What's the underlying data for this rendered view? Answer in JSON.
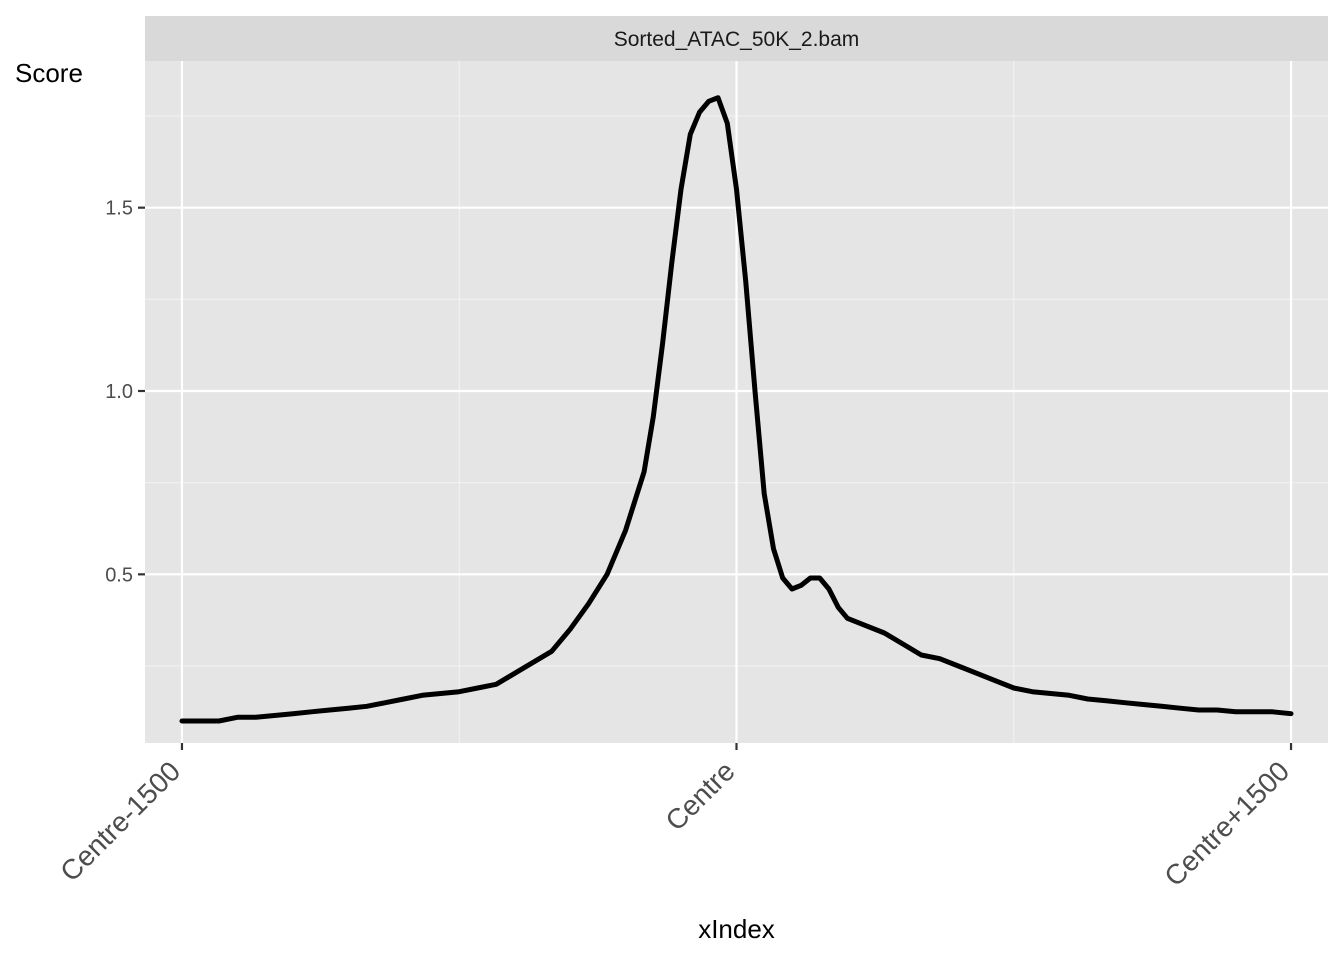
{
  "chart_data": {
    "type": "line",
    "facet_label": "Sorted_ATAC_50K_2.bam",
    "xlabel": "xIndex",
    "ylabel": "Score",
    "xlim": [
      -1600,
      1600
    ],
    "ylim": [
      0.04,
      1.9
    ],
    "x_ticks": [
      {
        "value": -1500,
        "label": "Centre-1500"
      },
      {
        "value": 0,
        "label": "Centre"
      },
      {
        "value": 1500,
        "label": "Centre+1500"
      }
    ],
    "y_ticks": [
      {
        "value": 0.5,
        "label": "0.5"
      },
      {
        "value": 1.0,
        "label": "1.0"
      },
      {
        "value": 1.5,
        "label": "1.5"
      }
    ],
    "grid": true,
    "series": [
      {
        "color": "#000000",
        "points": [
          [
            -1500,
            0.1
          ],
          [
            -1450,
            0.1
          ],
          [
            -1400,
            0.1
          ],
          [
            -1350,
            0.11
          ],
          [
            -1300,
            0.11
          ],
          [
            -1250,
            0.115
          ],
          [
            -1200,
            0.12
          ],
          [
            -1150,
            0.125
          ],
          [
            -1100,
            0.13
          ],
          [
            -1050,
            0.135
          ],
          [
            -1000,
            0.14
          ],
          [
            -950,
            0.15
          ],
          [
            -900,
            0.16
          ],
          [
            -850,
            0.17
          ],
          [
            -800,
            0.175
          ],
          [
            -750,
            0.18
          ],
          [
            -700,
            0.19
          ],
          [
            -650,
            0.2
          ],
          [
            -600,
            0.23
          ],
          [
            -550,
            0.26
          ],
          [
            -500,
            0.29
          ],
          [
            -450,
            0.35
          ],
          [
            -400,
            0.42
          ],
          [
            -350,
            0.5
          ],
          [
            -300,
            0.62
          ],
          [
            -250,
            0.78
          ],
          [
            -225,
            0.93
          ],
          [
            -200,
            1.13
          ],
          [
            -175,
            1.35
          ],
          [
            -150,
            1.55
          ],
          [
            -125,
            1.7
          ],
          [
            -100,
            1.76
          ],
          [
            -75,
            1.79
          ],
          [
            -50,
            1.8
          ],
          [
            -25,
            1.73
          ],
          [
            0,
            1.55
          ],
          [
            25,
            1.3
          ],
          [
            50,
            1.0
          ],
          [
            75,
            0.72
          ],
          [
            100,
            0.57
          ],
          [
            125,
            0.49
          ],
          [
            150,
            0.46
          ],
          [
            175,
            0.47
          ],
          [
            200,
            0.49
          ],
          [
            225,
            0.49
          ],
          [
            250,
            0.46
          ],
          [
            275,
            0.41
          ],
          [
            300,
            0.38
          ],
          [
            350,
            0.36
          ],
          [
            400,
            0.34
          ],
          [
            450,
            0.31
          ],
          [
            500,
            0.28
          ],
          [
            550,
            0.27
          ],
          [
            600,
            0.25
          ],
          [
            650,
            0.23
          ],
          [
            700,
            0.21
          ],
          [
            750,
            0.19
          ],
          [
            800,
            0.18
          ],
          [
            850,
            0.175
          ],
          [
            900,
            0.17
          ],
          [
            950,
            0.16
          ],
          [
            1000,
            0.155
          ],
          [
            1050,
            0.15
          ],
          [
            1100,
            0.145
          ],
          [
            1150,
            0.14
          ],
          [
            1200,
            0.135
          ],
          [
            1250,
            0.13
          ],
          [
            1300,
            0.13
          ],
          [
            1350,
            0.125
          ],
          [
            1400,
            0.125
          ],
          [
            1450,
            0.125
          ],
          [
            1500,
            0.12
          ]
        ]
      }
    ]
  }
}
